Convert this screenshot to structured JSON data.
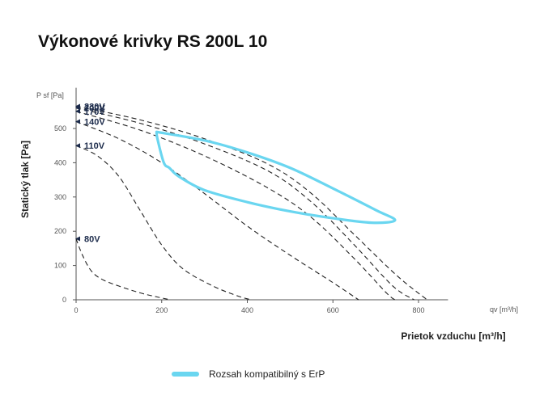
{
  "title": "Výkonové krivky RS 200L 10",
  "colors": {
    "erp": "#6ad6f0",
    "curve": "#222222",
    "axis": "#555555",
    "voltage_label": "#1b2a4a"
  },
  "chart_data": {
    "type": "line",
    "title": "Výkonové krivky RS 200L 10",
    "xlabel": "Prietok vzduchu [m³/h]",
    "ylabel": "Statický tlak [Pa]",
    "x_unit_label": "qv [m³/h]",
    "y_unit_label": "P sf [Pa]",
    "xlim": [
      0,
      850
    ],
    "ylim": [
      0,
      600
    ],
    "x_ticks": [
      0,
      200,
      400,
      600,
      800
    ],
    "y_ticks": [
      0,
      100,
      200,
      300,
      400,
      500
    ],
    "grid": false,
    "series": [
      {
        "name": "230V",
        "style": "dashed",
        "points": [
          [
            0,
            565
          ],
          [
            150,
            525
          ],
          [
            300,
            470
          ],
          [
            450,
            395
          ],
          [
            550,
            310
          ],
          [
            650,
            190
          ],
          [
            750,
            70
          ],
          [
            820,
            0
          ]
        ]
      },
      {
        "name": "200V",
        "style": "dashed",
        "points": [
          [
            0,
            560
          ],
          [
            150,
            515
          ],
          [
            300,
            455
          ],
          [
            450,
            375
          ],
          [
            550,
            285
          ],
          [
            650,
            160
          ],
          [
            740,
            40
          ],
          [
            790,
            0
          ]
        ]
      },
      {
        "name": "170V",
        "style": "dashed",
        "points": [
          [
            0,
            550
          ],
          [
            150,
            495
          ],
          [
            300,
            420
          ],
          [
            450,
            325
          ],
          [
            550,
            240
          ],
          [
            650,
            120
          ],
          [
            725,
            20
          ],
          [
            745,
            0
          ]
        ]
      },
      {
        "name": "140V",
        "style": "dashed",
        "points": [
          [
            0,
            520
          ],
          [
            100,
            470
          ],
          [
            200,
            400
          ],
          [
            300,
            310
          ],
          [
            400,
            215
          ],
          [
            500,
            130
          ],
          [
            600,
            50
          ],
          [
            660,
            0
          ]
        ]
      },
      {
        "name": "110V",
        "style": "dashed",
        "points": [
          [
            0,
            450
          ],
          [
            50,
            420
          ],
          [
            100,
            360
          ],
          [
            150,
            260
          ],
          [
            200,
            160
          ],
          [
            250,
            90
          ],
          [
            320,
            40
          ],
          [
            380,
            10
          ],
          [
            410,
            0
          ]
        ]
      },
      {
        "name": "80V",
        "style": "dashed",
        "points": [
          [
            0,
            178
          ],
          [
            15,
            130
          ],
          [
            35,
            85
          ],
          [
            60,
            60
          ],
          [
            100,
            40
          ],
          [
            150,
            20
          ],
          [
            190,
            8
          ],
          [
            220,
            0
          ]
        ]
      }
    ],
    "erp_range": {
      "name": "Rozsah kompatibilný s ErP",
      "points": [
        [
          188,
          490
        ],
        [
          300,
          465
        ],
        [
          400,
          430
        ],
        [
          500,
          385
        ],
        [
          600,
          325
        ],
        [
          700,
          262
        ],
        [
          745,
          232
        ],
        [
          690,
          225
        ],
        [
          600,
          238
        ],
        [
          500,
          258
        ],
        [
          400,
          285
        ],
        [
          300,
          320
        ],
        [
          240,
          360
        ],
        [
          218,
          385
        ],
        [
          205,
          400
        ],
        [
          190,
          470
        ],
        [
          188,
          490
        ]
      ]
    }
  },
  "legend": {
    "erp_label": "Rozsah kompatibilný s ErP"
  }
}
